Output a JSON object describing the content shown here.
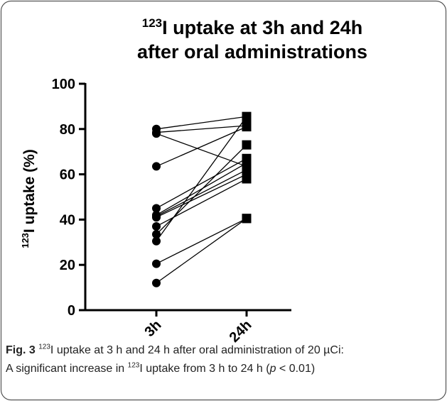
{
  "chart_data": {
    "type": "paired",
    "title_sup": "123",
    "title_lines": [
      "I uptake at 3h and 24h",
      "after oral administrations"
    ],
    "ylabel_sup": "123",
    "ylabel": "I uptake (%)",
    "categories": [
      "3h",
      "24h"
    ],
    "before": [
      80,
      78.5,
      78,
      63.5,
      45,
      42,
      41.5,
      41,
      37,
      33.5,
      30.5,
      20.5,
      12
    ],
    "after": [
      85.5,
      81.5,
      63.5,
      81,
      67,
      65,
      62,
      60,
      58,
      73,
      85.5,
      40.5,
      40.5
    ],
    "color": "#000000",
    "ylim": [
      0,
      100
    ],
    "yticks": [
      0,
      20,
      40,
      60,
      80,
      100
    ]
  },
  "caption": {
    "label": "Fig. 3",
    "sup1": "123",
    "line1": "I uptake at 3 h and 24 h after oral administration of 20 µCi:",
    "line2a": "A significant increase in ",
    "sup2": "123",
    "line2b": "I uptake from 3 h to 24 h (",
    "italic": "p",
    "line2c": " < 0.01)"
  }
}
